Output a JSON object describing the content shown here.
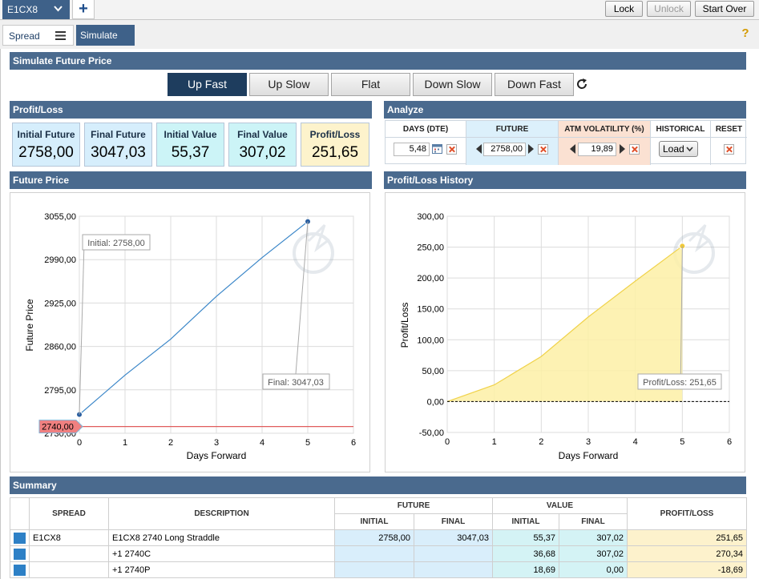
{
  "topbar": {
    "instrument_tab": "E1CX8",
    "lock_label": "Lock",
    "unlock_label": "Unlock",
    "startover_label": "Start Over"
  },
  "tabs": {
    "spread": "Spread",
    "simulate": "Simulate"
  },
  "simulate_section": {
    "title": "Simulate Future Price",
    "buttons": [
      "Up Fast",
      "Up Slow",
      "Flat",
      "Down Slow",
      "Down Fast"
    ],
    "active": "Up Fast"
  },
  "profit_loss": {
    "title": "Profit/Loss",
    "boxes": [
      {
        "label": "Initial Future",
        "value": "2758,00",
        "color": "#d6eefc"
      },
      {
        "label": "Final Future",
        "value": "3047,03",
        "color": "#d6eefc"
      },
      {
        "label": "Initial Value",
        "value": "55,37",
        "color": "#ccf4f7"
      },
      {
        "label": "Final Value",
        "value": "307,02",
        "color": "#ccf4f7"
      },
      {
        "label": "Profit/Loss",
        "value": "251,65",
        "color": "#fdf3cc"
      }
    ]
  },
  "analyze": {
    "title": "Analyze",
    "headers": [
      "DAYS (DTE)",
      "FUTURE",
      "ATM VOLATILITY (%)",
      "HISTORICAL",
      "RESET"
    ],
    "days_value": "5,48",
    "future_value": "2758,00",
    "volatility_value": "19,89",
    "load_label": "Load"
  },
  "future_price_chart": {
    "title": "Future Price",
    "chart_data": {
      "type": "line",
      "x": [
        0,
        1,
        2,
        3,
        4,
        5
      ],
      "values": [
        2758.0,
        2817.0,
        2871.0,
        2935.0,
        2993.0,
        3047.03
      ],
      "xlabel": "Days Forward",
      "ylabel": "Future Price",
      "xlim": [
        0,
        6
      ],
      "ylim": [
        2730,
        3055
      ],
      "y_ticks": [
        "3055,00",
        "2990,00",
        "2925,00",
        "2860,00",
        "2795,00",
        "2730,00"
      ],
      "y_tick_values": [
        3055,
        2990,
        2925,
        2860,
        2795,
        2730
      ],
      "x_ticks": [
        "0",
        "1",
        "2",
        "3",
        "4",
        "5",
        "6"
      ],
      "initial_annotation": "Initial: 2758,00",
      "final_annotation": "Final: 3047,03",
      "strike_marker": "2740,00",
      "strike_value": 2740,
      "line_color": "#3a86c8",
      "strike_color": "#e05c5c",
      "grid": true
    }
  },
  "pl_history_chart": {
    "title": "Profit/Loss History",
    "chart_data": {
      "type": "area",
      "x": [
        0,
        1,
        2,
        3,
        4,
        5
      ],
      "values": [
        0.0,
        27.0,
        73.0,
        137.0,
        195.0,
        251.65
      ],
      "xlabel": "Days Forward",
      "ylabel": "Profit/Loss",
      "xlim": [
        0,
        6
      ],
      "ylim": [
        -50,
        300
      ],
      "y_ticks": [
        "300,00",
        "250,00",
        "200,00",
        "150,00",
        "100,00",
        "50,00",
        "0,00",
        "-50,00"
      ],
      "y_tick_values": [
        300,
        250,
        200,
        150,
        100,
        50,
        0,
        -50
      ],
      "x_ticks": [
        "0",
        "1",
        "2",
        "3",
        "4",
        "5",
        "6"
      ],
      "final_annotation": "Profit/Loss: 251,65",
      "fill_color": "#fdf0a6",
      "line_color": "#f0d24a",
      "grid": true
    }
  },
  "summary": {
    "title": "Summary",
    "headers": {
      "spread": "SPREAD",
      "description": "DESCRIPTION",
      "future": "FUTURE",
      "value": "VALUE",
      "profit_loss": "PROFIT/LOSS",
      "initial": "INITIAL",
      "final": "FINAL"
    },
    "rows": [
      {
        "spread": "E1CX8",
        "description": "E1CX8 2740 Long Straddle",
        "fut_initial": "2758,00",
        "fut_final": "3047,03",
        "val_initial": "55,37",
        "val_final": "307,02",
        "pl": "251,65"
      },
      {
        "spread": "",
        "description": "+1 2740C",
        "fut_initial": "",
        "fut_final": "",
        "val_initial": "36,68",
        "val_final": "307,02",
        "pl": "270,34"
      },
      {
        "spread": "",
        "description": "+1 2740P",
        "fut_initial": "",
        "fut_final": "",
        "val_initial": "18,69",
        "val_final": "0,00",
        "pl": "-18,69"
      }
    ]
  }
}
